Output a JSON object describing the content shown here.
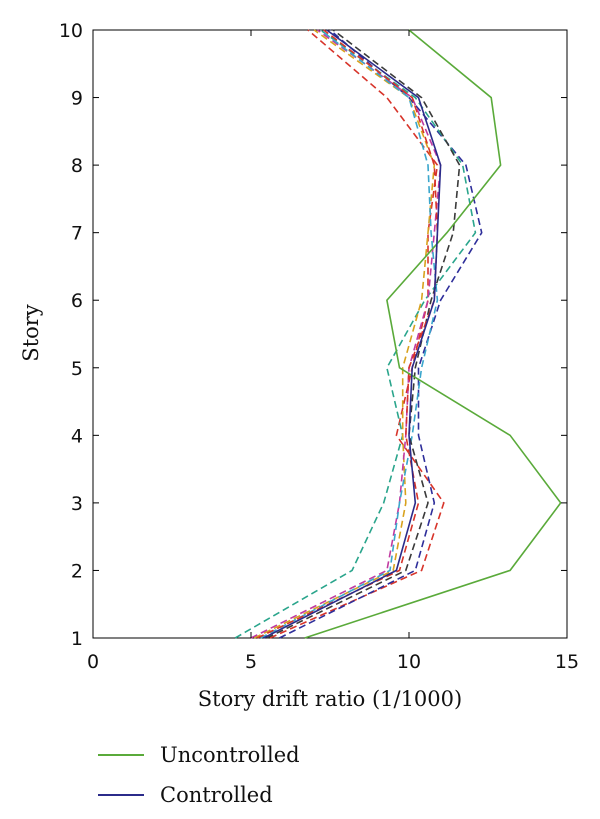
{
  "chart_data": {
    "type": "line",
    "xlabel": "Story drift ratio (1/1000)",
    "ylabel": "Story",
    "xlim": [
      0,
      15
    ],
    "ylim": [
      1,
      10
    ],
    "xticks": [
      "0",
      "5",
      "10",
      "15"
    ],
    "yticks": [
      "1",
      "2",
      "3",
      "4",
      "5",
      "6",
      "7",
      "8",
      "9",
      "10"
    ],
    "grid": false,
    "legend_position": "bottom-left",
    "y": [
      1,
      2,
      3,
      4,
      5,
      6,
      7,
      8,
      9,
      10
    ],
    "series": [
      {
        "name": "Uncontrolled",
        "color": "#5aaa3a",
        "dash": "solid",
        "x": [
          6.7,
          13.2,
          14.8,
          13.2,
          9.7,
          9.3,
          11.2,
          12.9,
          12.6,
          10.0
        ]
      },
      {
        "name": "Controlled",
        "color": "#2b2b8a",
        "dash": "solid",
        "x": [
          5.4,
          9.6,
          10.2,
          10.0,
          10.1,
          10.8,
          10.9,
          11.0,
          10.3,
          7.4
        ]
      }
    ],
    "unlabeled_series": [
      {
        "color": "#d7342a",
        "dash": "dashed",
        "x": [
          5.6,
          10.4,
          11.1,
          9.6,
          10.1,
          10.6,
          10.6,
          10.9,
          9.3,
          6.8
        ]
      },
      {
        "color": "#2e2e9a",
        "dash": "dashed",
        "x": [
          5.9,
          10.2,
          10.8,
          10.3,
          10.3,
          11.0,
          12.3,
          11.8,
          10.0,
          7.5
        ]
      },
      {
        "color": "#2aa58c",
        "dash": "dashed",
        "x": [
          4.5,
          8.2,
          9.2,
          9.8,
          9.3,
          10.5,
          12.1,
          11.7,
          10.2,
          7.2
        ]
      },
      {
        "color": "#d8a21e",
        "dash": "dashed",
        "x": [
          5.1,
          9.5,
          9.9,
          9.8,
          9.8,
          10.4,
          10.6,
          10.8,
          10.0,
          7.0
        ]
      },
      {
        "color": "#c03aa0",
        "dash": "dashed",
        "x": [
          5.0,
          9.3,
          9.7,
          9.9,
          10.0,
          10.6,
          10.8,
          11.0,
          10.1,
          7.1
        ]
      },
      {
        "color": "#3aa6cc",
        "dash": "dashed",
        "x": [
          5.3,
          9.4,
          9.7,
          10.1,
          10.4,
          10.9,
          10.7,
          10.6,
          10.0,
          7.2
        ]
      },
      {
        "color": "#3a3a3a",
        "dash": "dashed",
        "x": [
          5.5,
          9.9,
          10.6,
          10.0,
          10.2,
          10.7,
          11.4,
          11.6,
          10.4,
          7.6
        ]
      },
      {
        "color": "#d7342a",
        "dash": "dashed",
        "x": [
          5.2,
          9.7,
          10.3,
          9.9,
          10.0,
          10.8,
          10.9,
          10.8,
          10.1,
          7.3
        ]
      }
    ]
  }
}
